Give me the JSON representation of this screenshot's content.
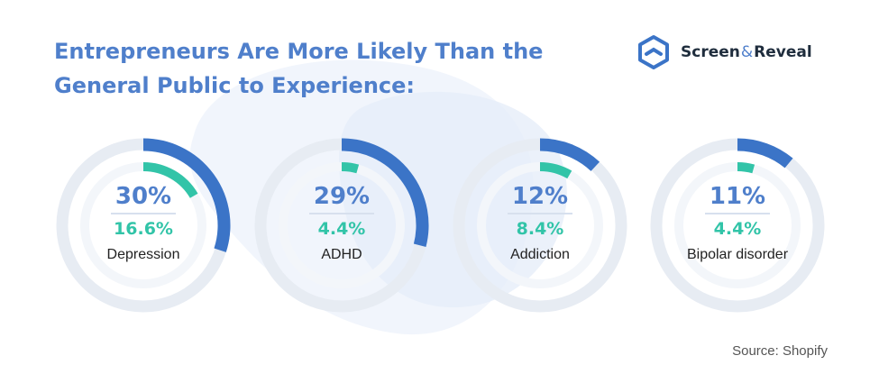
{
  "header": {
    "title_line1": "Entrepreneurs Are More Likely Than the",
    "title_line2": "General Public to Experience:"
  },
  "brand": {
    "name_left": "Screen",
    "ampersand": "&",
    "name_right": "Reveal"
  },
  "source": "Source: Shopify",
  "colors": {
    "entrepreneurs": "#3b74c7",
    "general_public": "#32c4a8",
    "track": "#e7ecf3",
    "title": "#4f7fcb"
  },
  "chart_data": {
    "type": "donut",
    "title": "Entrepreneurs Are More Likely Than the General Public to Experience:",
    "series": [
      {
        "values": [
          30,
          29,
          12,
          11
        ]
      },
      {
        "values": [
          16.6,
          4.4,
          8.4,
          4.4
        ]
      }
    ],
    "items": [
      {
        "category": "Depression",
        "big_label": "30%",
        "small_label": "16.6%",
        "outer": 30,
        "inner": 16.6
      },
      {
        "category": "ADHD",
        "big_label": "29%",
        "small_label": "4.4%",
        "outer": 29,
        "inner": 4.4
      },
      {
        "category": "Addiction",
        "big_label": "12%",
        "small_label": "8.4%",
        "outer": 12,
        "inner": 8.4
      },
      {
        "category": "Bipolar disorder",
        "big_label": "11%",
        "small_label": "4.4%",
        "outer": 11,
        "inner": 4.4
      }
    ]
  }
}
